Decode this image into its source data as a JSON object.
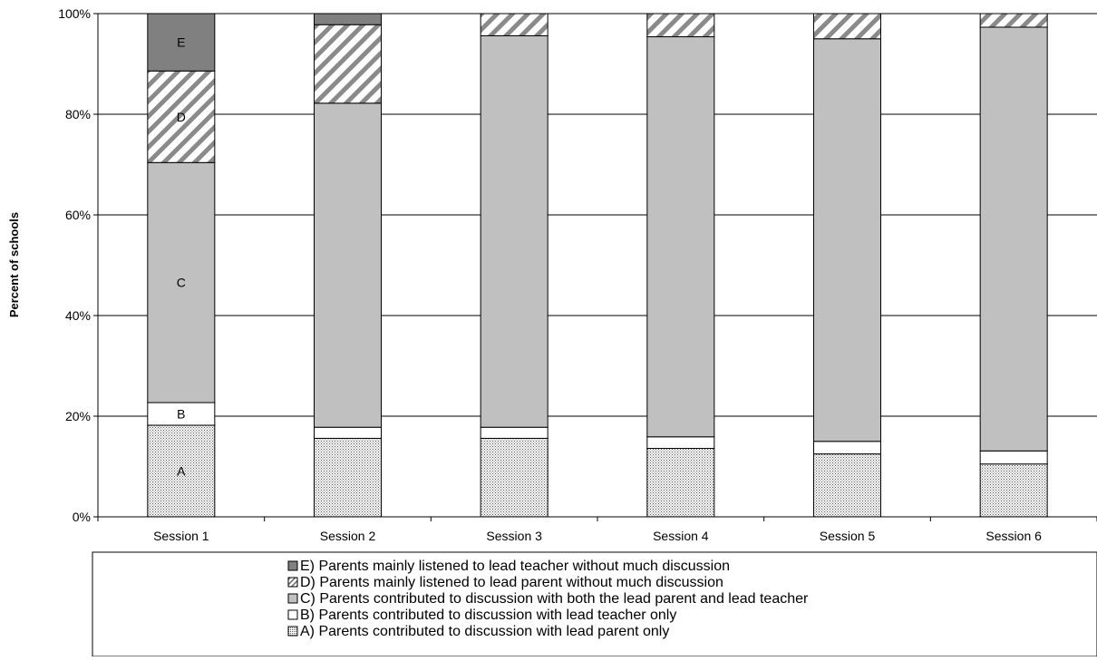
{
  "chart_data": {
    "type": "bar",
    "stacked": true,
    "percent": true,
    "ylabel": "Percent of schools",
    "ylim": [
      0,
      100
    ],
    "yticks": [
      "0%",
      "20%",
      "40%",
      "60%",
      "80%",
      "100%"
    ],
    "grid": true,
    "legend_position": "bottom",
    "categories": [
      "Session 1",
      "Session 2",
      "Session 3",
      "Session 4",
      "Session 5",
      "Session 6"
    ],
    "series": [
      {
        "name": "A) Parents contributed to discussion with lead parent only",
        "short": "A",
        "pattern": "dots",
        "values": [
          18.2,
          15.6,
          15.6,
          13.6,
          12.5,
          10.5
        ]
      },
      {
        "name": "B) Parents contributed to discussion with lead teacher only",
        "short": "B",
        "pattern": "white",
        "values": [
          4.5,
          2.2,
          2.2,
          2.3,
          2.5,
          2.6
        ]
      },
      {
        "name": "C) Parents contributed to discussion with both the lead parent and lead teacher",
        "short": "C",
        "pattern": "gray",
        "values": [
          47.7,
          64.4,
          77.8,
          79.5,
          80.0,
          84.2
        ]
      },
      {
        "name": "D) Parents mainly listened to lead parent without much discussion",
        "short": "D",
        "pattern": "hatch",
        "values": [
          18.2,
          15.6,
          4.4,
          4.6,
          5.0,
          2.7
        ]
      },
      {
        "name": "E) Parents mainly listened to lead teacher without much discussion",
        "short": "E",
        "pattern": "dark",
        "values": [
          11.4,
          2.2,
          0,
          0,
          0,
          0
        ]
      }
    ],
    "segment_labels_category": "Session 1",
    "legend_order": [
      "E",
      "D",
      "C",
      "B",
      "A"
    ],
    "colors": {
      "gray": "#c0c0c0",
      "dark": "#808080",
      "white": "#ffffff",
      "border": "#000000"
    }
  }
}
